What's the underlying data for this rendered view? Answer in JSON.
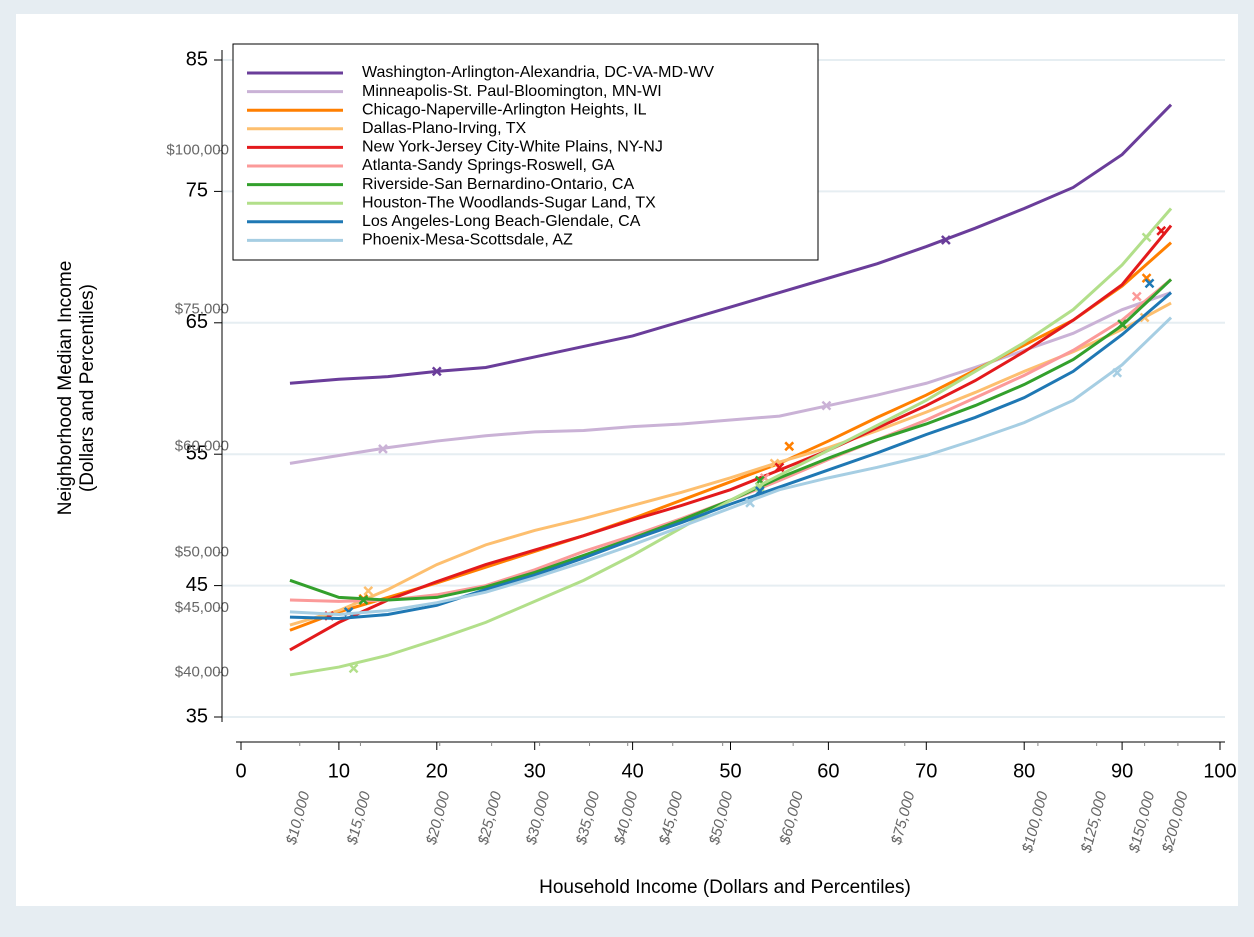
{
  "chart_data": {
    "type": "line",
    "xlabel": "Household Income (Dollars and Percentiles)",
    "ylabel": [
      "Neighborhood Median Income",
      "(Dollars and Percentiles)"
    ],
    "xlim": [
      0,
      100
    ],
    "ylim": [
      35,
      85
    ],
    "xticks": [
      0,
      10,
      20,
      30,
      40,
      50,
      60,
      70,
      80,
      90,
      100
    ],
    "yticks": [
      35,
      45,
      55,
      65,
      75,
      85
    ],
    "grid": true,
    "x_dollar_ticks": [
      {
        "value": 6.0,
        "label": "$10,000"
      },
      {
        "value": 12.2,
        "label": "$15,000"
      },
      {
        "value": 20.3,
        "label": "$20,000"
      },
      {
        "value": 25.6,
        "label": "$25,000"
      },
      {
        "value": 30.5,
        "label": "$30,000"
      },
      {
        "value": 35.6,
        "label": "$35,000"
      },
      {
        "value": 39.5,
        "label": "$40,000"
      },
      {
        "value": 44.1,
        "label": "$45,000"
      },
      {
        "value": 49.2,
        "label": "$50,000"
      },
      {
        "value": 56.4,
        "label": "$60,000"
      },
      {
        "value": 67.8,
        "label": "$75,000"
      },
      {
        "value": 81.4,
        "label": "$100,000"
      },
      {
        "value": 87.4,
        "label": "$125,000"
      },
      {
        "value": 92.3,
        "label": "$150,000"
      },
      {
        "value": 95.7,
        "label": "$200,000"
      }
    ],
    "y_dollar_ticks": [
      {
        "value": 78.1,
        "label": "$100,000"
      },
      {
        "value": 66.0,
        "label": "$75,000"
      },
      {
        "value": 55.6,
        "label": "$60,000"
      },
      {
        "value": 47.5,
        "label": "$50,000"
      },
      {
        "value": 43.3,
        "label": "$45,000"
      },
      {
        "value": 38.4,
        "label": "$40,000"
      }
    ],
    "x": [
      5,
      10,
      15,
      20,
      25,
      30,
      35,
      40,
      45,
      50,
      55,
      60,
      65,
      70,
      75,
      80,
      85,
      90,
      95
    ],
    "series": [
      {
        "name": "Washington-Arlington-Alexandria, DC-VA-MD-WV",
        "color": "#6a3d9a",
        "values": [
          60.4,
          60.7,
          60.9,
          61.3,
          61.6,
          62.4,
          63.2,
          64.0,
          65.1,
          66.2,
          67.3,
          68.4,
          69.5,
          70.8,
          72.2,
          73.7,
          75.3,
          77.8,
          81.6
        ],
        "marker_x": [
          20,
          72
        ],
        "marker_y": [
          61.3,
          71.3
        ]
      },
      {
        "name": "Minneapolis-St. Paul-Bloomington, MN-WI",
        "color": "#cab2d6",
        "values": [
          54.3,
          54.9,
          55.5,
          56.0,
          56.4,
          56.7,
          56.8,
          57.1,
          57.3,
          57.6,
          57.9,
          58.7,
          59.5,
          60.4,
          61.6,
          62.9,
          64.2,
          66.0,
          67.3
        ],
        "marker_x": [
          14.5,
          59.8
        ],
        "marker_y": [
          55.4,
          58.7
        ]
      },
      {
        "name": "Chicago-Naperville-Arlington Heights, IL",
        "color": "#ff7f00",
        "values": [
          41.6,
          43.0,
          44.1,
          45.2,
          46.4,
          47.6,
          48.8,
          50.1,
          51.5,
          52.9,
          54.3,
          56.0,
          57.8,
          59.5,
          61.4,
          63.3,
          65.2,
          67.8,
          71.1
        ],
        "marker_x": [
          12.5,
          56,
          92.5
        ],
        "marker_y": [
          44.0,
          55.6,
          68.4
        ]
      },
      {
        "name": "Dallas-Plano-Irving, TX",
        "color": "#fdbf6f",
        "values": [
          42.0,
          43.1,
          44.7,
          46.6,
          48.1,
          49.2,
          50.1,
          51.1,
          52.1,
          53.2,
          54.4,
          55.5,
          56.8,
          58.2,
          59.7,
          61.3,
          62.8,
          64.5,
          66.5
        ],
        "marker_x": [
          13,
          54.5,
          92.3
        ],
        "marker_y": [
          44.6,
          54.3,
          65.4
        ]
      },
      {
        "name": "New York-Jersey City-White Plains, NY-NJ",
        "color": "#e31a1c",
        "values": [
          40.1,
          42.2,
          43.9,
          45.3,
          46.6,
          47.7,
          48.8,
          50.0,
          51.1,
          52.3,
          53.8,
          55.3,
          57.0,
          58.7,
          60.6,
          62.8,
          65.2,
          67.9,
          72.4
        ],
        "marker_x": [
          9,
          55,
          94
        ],
        "marker_y": [
          42.7,
          54.0,
          72.0
        ]
      },
      {
        "name": "Atlanta-Sandy Springs-Roswell, GA",
        "color": "#fb9a99",
        "values": [
          43.9,
          43.8,
          43.9,
          44.3,
          45.0,
          46.2,
          47.6,
          48.8,
          50.1,
          51.5,
          53.0,
          54.6,
          56.1,
          57.6,
          59.3,
          61.0,
          62.9,
          65.2,
          68.3
        ],
        "marker_x": [
          53.5,
          91.5
        ],
        "marker_y": [
          53.2,
          67.0
        ]
      },
      {
        "name": "Riverside-San Bernardino-Ontario, CA",
        "color": "#33a02c",
        "values": [
          45.4,
          44.1,
          43.9,
          44.1,
          44.9,
          46.0,
          47.3,
          48.6,
          50.0,
          51.5,
          53.2,
          54.7,
          56.1,
          57.3,
          58.7,
          60.3,
          62.2,
          64.8,
          68.3
        ],
        "marker_x": [
          12.5,
          53,
          90
        ],
        "marker_y": [
          43.9,
          53.0,
          64.9
        ]
      },
      {
        "name": "Houston-The Woodlands-Sugar Land, TX",
        "color": "#b2df8a",
        "values": [
          38.2,
          38.8,
          39.7,
          40.9,
          42.2,
          43.8,
          45.4,
          47.3,
          49.4,
          51.5,
          53.4,
          55.3,
          57.2,
          59.1,
          61.3,
          63.5,
          66.0,
          69.4,
          73.7
        ],
        "marker_x": [
          11.5,
          53,
          92.5
        ],
        "marker_y": [
          38.7,
          52.5,
          71.5
        ]
      },
      {
        "name": "Los Angeles-Long Beach-Glendale, CA",
        "color": "#1f78b4",
        "values": [
          42.6,
          42.5,
          42.8,
          43.5,
          44.7,
          45.8,
          47.1,
          48.5,
          49.8,
          51.2,
          52.5,
          53.8,
          55.1,
          56.5,
          57.8,
          59.3,
          61.3,
          64.1,
          67.3
        ],
        "marker_x": [
          11,
          53,
          92.8
        ],
        "marker_y": [
          43.0,
          52.2,
          68.0
        ]
      },
      {
        "name": "Phoenix-Mesa-Scottsdale, AZ",
        "color": "#a6cee3",
        "values": [
          43.0,
          42.8,
          43.1,
          43.7,
          44.5,
          45.6,
          46.8,
          48.1,
          49.5,
          50.9,
          52.3,
          53.2,
          54.0,
          54.9,
          56.1,
          57.4,
          59.1,
          61.8,
          65.4
        ],
        "marker_x": [
          52,
          89.5
        ],
        "marker_y": [
          51.3,
          61.2
        ]
      }
    ]
  }
}
